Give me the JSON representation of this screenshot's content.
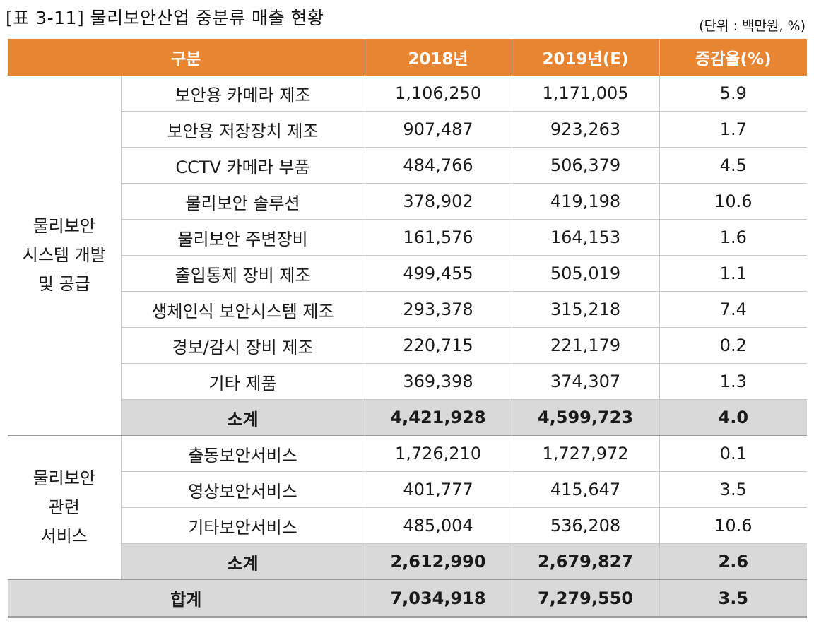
{
  "caption": "[표 3-11] 물리보안산업 중분류 매출 현황",
  "unit": "(단위 : 백만원, %)",
  "headers": {
    "category": "구분",
    "y2018": "2018년",
    "y2019": "2019년(E)",
    "growth": "증감율(%)"
  },
  "groups": [
    {
      "name_lines": [
        "물리보안",
        "시스템 개발",
        "및 공급"
      ],
      "rows": [
        {
          "item": "보안용 카메라 제조",
          "y2018": "1,106,250",
          "y2019": "1,171,005",
          "growth": "5.9"
        },
        {
          "item": "보안용 저장장치 제조",
          "y2018": "907,487",
          "y2019": "923,263",
          "growth": "1.7"
        },
        {
          "item": "CCTV 카메라 부품",
          "y2018": "484,766",
          "y2019": "506,379",
          "growth": "4.5"
        },
        {
          "item": "물리보안 솔루션",
          "y2018": "378,902",
          "y2019": "419,198",
          "growth": "10.6"
        },
        {
          "item": "물리보안 주변장비",
          "y2018": "161,576",
          "y2019": "164,153",
          "growth": "1.6"
        },
        {
          "item": "출입통제 장비 제조",
          "y2018": "499,455",
          "y2019": "505,019",
          "growth": "1.1"
        },
        {
          "item": "생체인식 보안시스템 제조",
          "y2018": "293,378",
          "y2019": "315,218",
          "growth": "7.4"
        },
        {
          "item": "경보/감시 장비 제조",
          "y2018": "220,715",
          "y2019": "221,179",
          "growth": "0.2"
        },
        {
          "item": "기타 제품",
          "y2018": "369,398",
          "y2019": "374,307",
          "growth": "1.3"
        }
      ],
      "subtotal": {
        "label": "소계",
        "y2018": "4,421,928",
        "y2019": "4,599,723",
        "growth": "4.0"
      }
    },
    {
      "name_lines": [
        "물리보안",
        "관련",
        "서비스"
      ],
      "rows": [
        {
          "item": "출동보안서비스",
          "y2018": "1,726,210",
          "y2019": "1,727,972",
          "growth": "0.1"
        },
        {
          "item": "영상보안서비스",
          "y2018": "401,777",
          "y2019": "415,647",
          "growth": "3.5"
        },
        {
          "item": "기타보안서비스",
          "y2018": "485,004",
          "y2019": "536,208",
          "growth": "10.6"
        }
      ],
      "subtotal": {
        "label": "소계",
        "y2018": "2,612,990",
        "y2019": "2,679,827",
        "growth": "2.6"
      }
    }
  ],
  "total": {
    "label": "합계",
    "y2018": "7,034,918",
    "y2019": "7,279,550",
    "growth": "3.5"
  },
  "colors": {
    "header_bg": "#e88532",
    "subtotal_bg": "#d9d9d9"
  }
}
